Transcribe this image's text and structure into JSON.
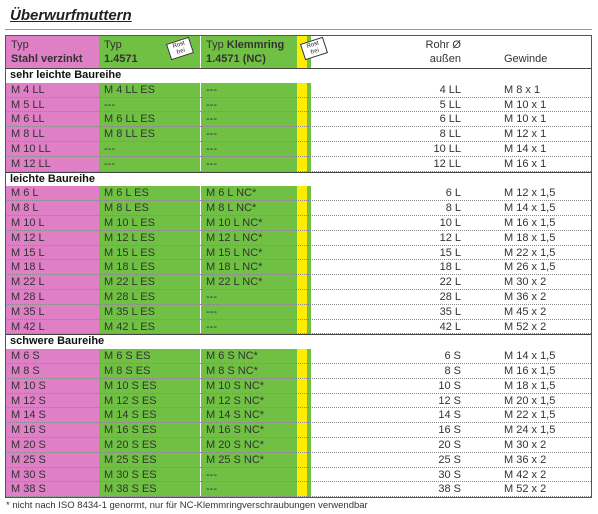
{
  "title": "Überwurfmuttern",
  "header": {
    "col1": {
      "line1": "Typ",
      "line2": "Stahl verzinkt"
    },
    "col2": {
      "line1": "Typ",
      "line2": "1.4571"
    },
    "col3": {
      "line1a": "Typ",
      "line1b": "Klemmring",
      "line2": "1.4571 (NC)"
    },
    "col4": {
      "line1": "Rohr Ø",
      "line2": "außen"
    },
    "col5": "Gewinde",
    "badge": "Rost frei"
  },
  "sections": [
    {
      "label": "sehr leichte Baureihe",
      "rows": [
        [
          "M 4 LL",
          "M 4 LL ES",
          "---",
          "4 LL",
          "M 8 x 1"
        ],
        [
          "M 5 LL",
          "---",
          "---",
          "5 LL",
          "M 10 x 1"
        ],
        [
          "M 6 LL",
          "M 6 LL ES",
          "---",
          "6 LL",
          "M 10 x 1"
        ],
        [
          "M 8 LL",
          "M 8 LL ES",
          "---",
          "8 LL",
          "M 12 x 1"
        ],
        [
          "M 10 LL",
          "---",
          "---",
          "10 LL",
          "M 14 x 1"
        ],
        [
          "M 12 LL",
          "---",
          "---",
          "12 LL",
          "M 16 x 1"
        ]
      ]
    },
    {
      "label": "leichte Baureihe",
      "rows": [
        [
          "M 6 L",
          "M 6 L ES",
          "M 6 L NC*",
          "6 L",
          "M 12 x 1,5"
        ],
        [
          "M 8 L",
          "M 8 L ES",
          "M 8 L NC*",
          "8 L",
          "M 14 x 1,5"
        ],
        [
          "M 10 L",
          "M 10 L ES",
          "M 10 L NC*",
          "10 L",
          "M 16 x 1,5"
        ],
        [
          "M 12 L",
          "M 12 L ES",
          "M 12 L NC*",
          "12 L",
          "M 18 x 1,5"
        ],
        [
          "M 15 L",
          "M 15 L ES",
          "M 15 L NC*",
          "15 L",
          "M 22 x 1,5"
        ],
        [
          "M 18 L",
          "M 18 L ES",
          "M 18 L NC*",
          "18 L",
          "M 26 x 1,5"
        ],
        [
          "M 22 L",
          "M 22 L ES",
          "M 22 L NC*",
          "22 L",
          "M 30 x 2"
        ],
        [
          "M 28 L",
          "M 28 L ES",
          "---",
          "28 L",
          "M 36 x 2"
        ],
        [
          "M 35 L",
          "M 35 L ES",
          "---",
          "35 L",
          "M 45 x 2"
        ],
        [
          "M 42 L",
          "M 42 L ES",
          "---",
          "42 L",
          "M 52 x 2"
        ]
      ]
    },
    {
      "label": "schwere Baureihe",
      "rows": [
        [
          "M 6 S",
          "M 6 S ES",
          "M 6 S NC*",
          "6 S",
          "M 14 x 1,5"
        ],
        [
          "M 8 S",
          "M 8 S ES",
          "M 8 S NC*",
          "8 S",
          "M 16 x 1,5"
        ],
        [
          "M 10 S",
          "M 10 S ES",
          "M 10 S NC*",
          "10 S",
          "M 18 x 1,5"
        ],
        [
          "M 12 S",
          "M 12 S ES",
          "M 12 S NC*",
          "12 S",
          "M 20 x 1,5"
        ],
        [
          "M 14 S",
          "M 14 S ES",
          "M 14 S NC*",
          "14 S",
          "M 22 x 1,5"
        ],
        [
          "M 16 S",
          "M 16 S ES",
          "M 16 S NC*",
          "16 S",
          "M 24 x 1,5"
        ],
        [
          "M 20 S",
          "M 20 S ES",
          "M 20 S NC*",
          "20 S",
          "M 30 x 2"
        ],
        [
          "M 25 S",
          "M 25 S ES",
          "M 25 S NC*",
          "25 S",
          "M 36 x 2"
        ],
        [
          "M 30 S",
          "M 30 S ES",
          "---",
          "30 S",
          "M 42 x 2"
        ],
        [
          "M 38 S",
          "M 38 S ES",
          "---",
          "38 S",
          "M 52 x 2"
        ]
      ]
    }
  ],
  "footnote": "* nicht nach ISO 8434-1 genormt, nur für NC-Klemmringverschraubungen verwendbar"
}
